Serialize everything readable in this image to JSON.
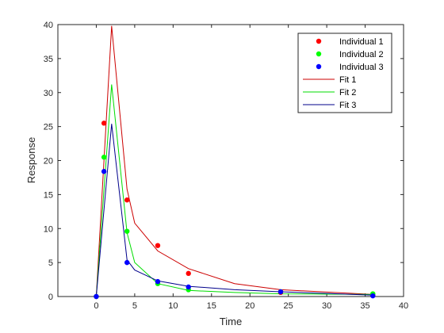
{
  "chart_data": {
    "type": "scatter",
    "title": "",
    "xlabel": "Time",
    "ylabel": "Response",
    "xlim": [
      -5,
      40
    ],
    "ylim": [
      0,
      40
    ],
    "xticks": [
      0,
      5,
      10,
      15,
      20,
      25,
      30,
      35,
      40
    ],
    "yticks": [
      0,
      5,
      10,
      15,
      20,
      25,
      30,
      35,
      40
    ],
    "grid": false,
    "legend_position": "top-right",
    "scatter_series": [
      {
        "name": "Individual 1",
        "color": "#ff0000",
        "x": [
          0,
          1,
          4,
          8,
          12,
          24,
          36
        ],
        "y": [
          0,
          25.5,
          14.2,
          7.5,
          3.4,
          0.6,
          0.2
        ]
      },
      {
        "name": "Individual 2",
        "color": "#00ff00",
        "x": [
          0,
          1,
          4,
          8,
          12,
          24,
          36
        ],
        "y": [
          0,
          20.5,
          9.6,
          1.9,
          1.0,
          0.7,
          0.4
        ]
      },
      {
        "name": "Individual 3",
        "color": "#0000ff",
        "x": [
          0,
          1,
          4,
          8,
          12,
          24,
          36
        ],
        "y": [
          0,
          18.4,
          5.0,
          2.2,
          1.4,
          0.7,
          0.1
        ]
      }
    ],
    "line_series": [
      {
        "name": "Fit 1",
        "color": "#cc0000",
        "x": [
          0,
          2,
          4,
          5,
          8,
          12,
          18,
          24,
          36
        ],
        "y": [
          0,
          39.8,
          15.8,
          10.8,
          6.7,
          4.1,
          1.9,
          1.0,
          0.3
        ]
      },
      {
        "name": "Fit 2",
        "color": "#00dd00",
        "x": [
          0,
          2,
          4,
          5,
          8,
          12,
          18,
          24,
          36
        ],
        "y": [
          0,
          31.2,
          9.4,
          5.0,
          1.9,
          0.9,
          0.6,
          0.4,
          0.3
        ]
      },
      {
        "name": "Fit 3",
        "color": "#00008b",
        "x": [
          0,
          2,
          4,
          5,
          8,
          12,
          18,
          24,
          36
        ],
        "y": [
          0,
          25.4,
          5.4,
          3.9,
          2.3,
          1.5,
          1.0,
          0.7,
          0.2
        ]
      }
    ]
  }
}
